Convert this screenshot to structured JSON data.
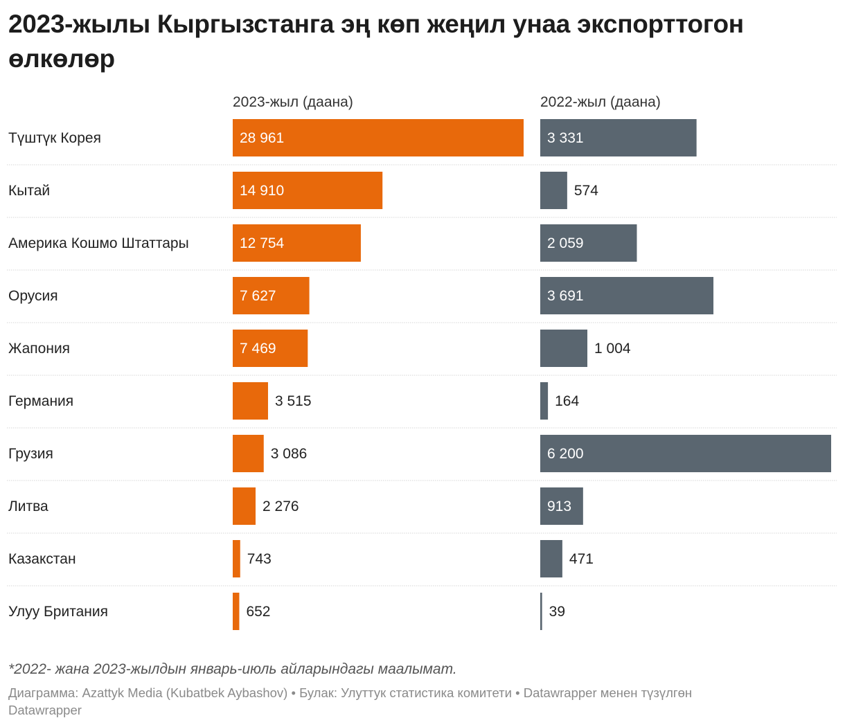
{
  "title": "2023-жылы Кыргызстанга эң көп жеңил унаа экспорттогон өлкөлөр",
  "note": "*2022- жана 2023-жылдын январь-июль айларындагы маалымат.",
  "credits": {
    "chart_by": "Диаграмма: Azattyk Media (Kubatbek Aybashov)",
    "source": "Булак: Улуттук статистика комитети",
    "made_with": "Datawrapper менен түзүлгөн",
    "brand": "Datawrapper",
    "separator": "•"
  },
  "colors": {
    "series_2023": "#e8690b",
    "series_2022": "#5a6670",
    "gridline": "#d6d6d6",
    "label_inside": "#ffffff",
    "label_outside": "#222222",
    "row_label": "#222222"
  },
  "chart_data": {
    "type": "bar",
    "orientation": "horizontal",
    "title": "2023-жылы Кыргызстанга эң көп жеңил унаа экспорттогон өлкөлөр",
    "categories": [
      "Түштүк Корея",
      "Кытай",
      "Америка Кошмо Штаттары",
      "Орусия",
      "Жапония",
      "Германия",
      "Грузия",
      "Литва",
      "Казакстан",
      "Улуу Британия"
    ],
    "series": [
      {
        "name": "2023-жыл (даана)",
        "values": [
          28961,
          14910,
          12754,
          7627,
          7469,
          3515,
          3086,
          2276,
          743,
          652
        ],
        "labels": [
          "28 961",
          "14 910",
          "12 754",
          "7 627",
          "7 469",
          "3 515",
          "3 086",
          "2 276",
          "743",
          "652"
        ],
        "xlim": [
          0,
          28961
        ]
      },
      {
        "name": "2022-жыл (даана)",
        "values": [
          3331,
          574,
          2059,
          3691,
          1004,
          164,
          6200,
          913,
          471,
          39
        ],
        "labels": [
          "3 331",
          "574",
          "2 059",
          "3 691",
          "1 004",
          "164",
          "6 200",
          "913",
          "471",
          "39"
        ],
        "xlim": [
          0,
          6200
        ]
      }
    ],
    "xlabel": "",
    "ylabel": "",
    "grid": false,
    "row_separators": true
  }
}
